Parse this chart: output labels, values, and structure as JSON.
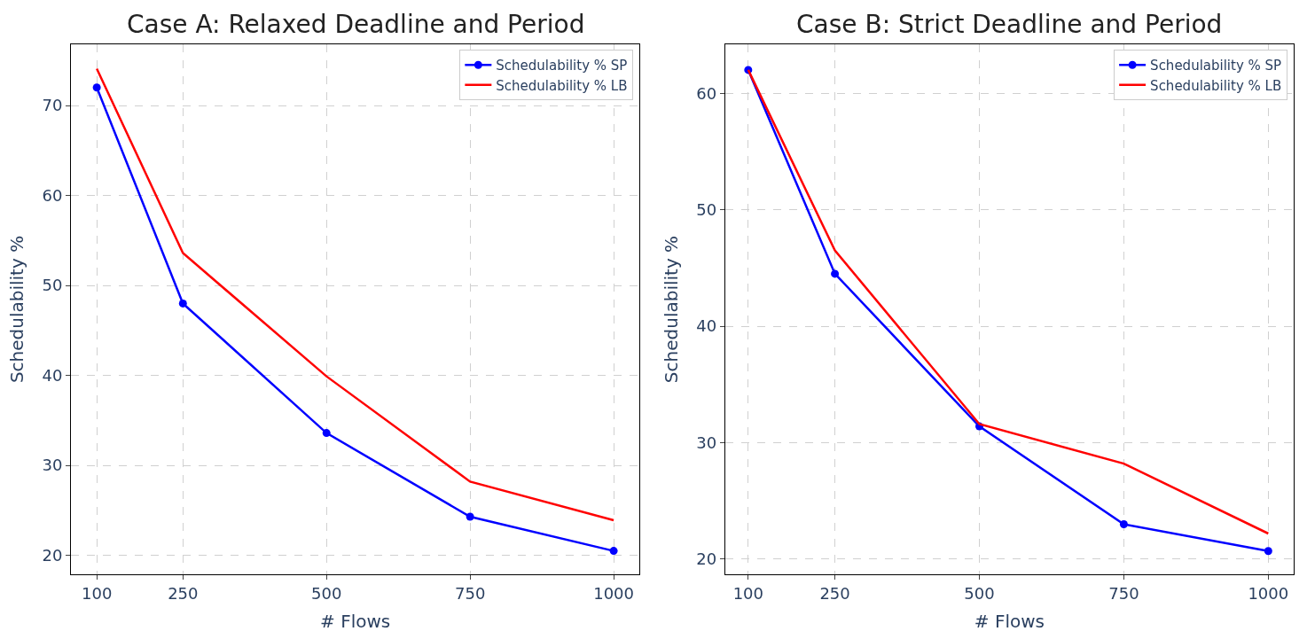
{
  "chart_data": [
    {
      "type": "line",
      "title": "Case A: Relaxed Deadline and Period",
      "xlabel": "# Flows",
      "ylabel": "Schedulability %",
      "x": [
        100,
        250,
        500,
        750,
        1000
      ],
      "xlim": [
        55,
        1045
      ],
      "xticks": [
        100,
        250,
        500,
        750,
        1000
      ],
      "ylim": [
        17.9,
        76.8
      ],
      "yticks": [
        20,
        30,
        40,
        50,
        60,
        70
      ],
      "grid": true,
      "legend": "top right",
      "series": [
        {
          "name": "Schedulability % SP",
          "color": "#0000ff",
          "marker": "circle",
          "values": [
            72,
            48,
            33.6,
            24.3,
            20.5
          ]
        },
        {
          "name": "Schedulability % LB",
          "color": "#ff0000",
          "marker": "none",
          "values": [
            74.1,
            53.6,
            39.9,
            28.2,
            23.9
          ]
        }
      ]
    },
    {
      "type": "line",
      "title": "Case B: Strict Deadline and Period",
      "xlabel": "# Flows",
      "ylabel": "Schedulability %",
      "x": [
        100,
        250,
        500,
        750,
        1000
      ],
      "xlim": [
        60,
        1044
      ],
      "xticks": [
        100,
        250,
        500,
        750,
        1000
      ],
      "ylim": [
        18.7,
        64.2
      ],
      "yticks": [
        20,
        30,
        40,
        50,
        60
      ],
      "grid": true,
      "legend": "top right",
      "series": [
        {
          "name": "Schedulability % SP",
          "color": "#0000ff",
          "marker": "circle",
          "values": [
            62,
            44.5,
            31.4,
            23.0,
            20.7
          ]
        },
        {
          "name": "Schedulability % LB",
          "color": "#ff0000",
          "marker": "none",
          "values": [
            62,
            46.5,
            31.6,
            28.2,
            22.2
          ]
        }
      ]
    }
  ]
}
